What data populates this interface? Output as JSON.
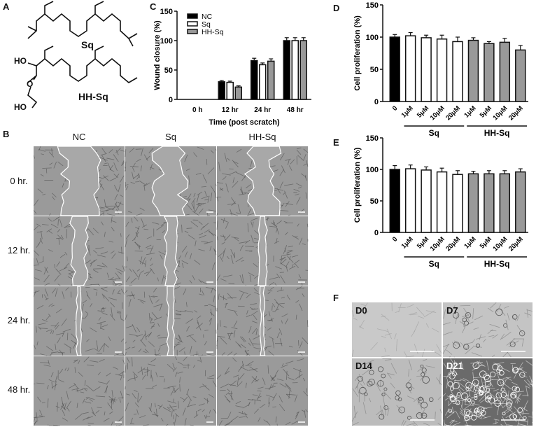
{
  "panels": {
    "A": {
      "label": "A",
      "molecules": [
        {
          "name": "Sq"
        },
        {
          "name": "HH-Sq",
          "atoms": [
            "HO",
            "O",
            "HO"
          ]
        }
      ]
    },
    "B": {
      "label": "B",
      "columns": [
        "NC",
        "Sq",
        "HH-Sq"
      ],
      "rows": [
        "0 hr.",
        "12 hr.",
        "24 hr.",
        "48 hr."
      ]
    },
    "C": {
      "label": "C"
    },
    "D": {
      "label": "D"
    },
    "E": {
      "label": "E"
    },
    "F": {
      "label": "F",
      "images": [
        "D0",
        "D7",
        "D14",
        "D21"
      ]
    }
  },
  "colors": {
    "NC": "#000000",
    "Sq": "#ffffff",
    "HH-Sq": "#999999"
  },
  "chart_data": [
    {
      "id": "C",
      "type": "bar",
      "categories": [
        "0 h",
        "12 hr",
        "24 hr",
        "48 hr"
      ],
      "series": [
        {
          "name": "NC",
          "values": [
            0,
            30,
            66,
            100
          ],
          "errors": [
            0,
            2,
            4,
            5
          ]
        },
        {
          "name": "Sq",
          "values": [
            0,
            29,
            59,
            100
          ],
          "errors": [
            0,
            2,
            3,
            5
          ]
        },
        {
          "name": "HH-Sq",
          "values": [
            0,
            21,
            65,
            100
          ],
          "errors": [
            0,
            2,
            4,
            5
          ]
        }
      ],
      "xlabel": "Time (post scratch)",
      "ylabel": "Wound closure (%)",
      "ylim": [
        0,
        150
      ],
      "yticks": [
        0,
        50,
        100,
        150
      ],
      "legend": "top-left"
    },
    {
      "id": "D",
      "type": "bar",
      "categories": [
        "0",
        "1μM",
        "5μM",
        "10μM",
        "20μM",
        "1μM",
        "5μM",
        "10μM",
        "20μM"
      ],
      "groups": [
        {
          "label": "Sq",
          "from": 1,
          "to": 4
        },
        {
          "label": "HH-Sq",
          "from": 5,
          "to": 8
        }
      ],
      "values": [
        100,
        102,
        99,
        97,
        93,
        95,
        90,
        92,
        80
      ],
      "errors": [
        4,
        5,
        4,
        6,
        7,
        4,
        3,
        6,
        7
      ],
      "ylabel": "Cell proliferation (%)",
      "ylim": [
        0,
        150
      ],
      "yticks": [
        0,
        50,
        100,
        150
      ]
    },
    {
      "id": "E",
      "type": "bar",
      "categories": [
        "0",
        "1μM",
        "5μM",
        "10μM",
        "20μM",
        "1μM",
        "5μM",
        "10μM",
        "20μM"
      ],
      "groups": [
        {
          "label": "Sq",
          "from": 1,
          "to": 4
        },
        {
          "label": "HH-Sq",
          "from": 5,
          "to": 8
        }
      ],
      "values": [
        100,
        101,
        99,
        96,
        92,
        93,
        93,
        93,
        96
      ],
      "errors": [
        6,
        6,
        5,
        6,
        6,
        4,
        5,
        5,
        5
      ],
      "ylabel": "Cell proliferation (%)",
      "ylim": [
        0,
        150
      ],
      "yticks": [
        0,
        50,
        100,
        150
      ]
    }
  ]
}
